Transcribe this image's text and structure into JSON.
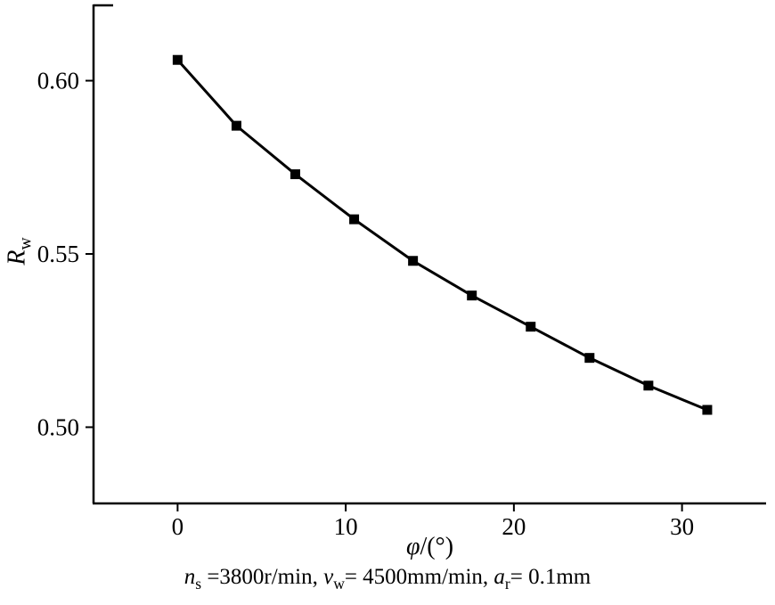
{
  "chart_data": {
    "type": "line",
    "title": "",
    "xlabel": "φ/(°)",
    "ylabel": "R_w",
    "x": [
      0,
      3.5,
      7,
      10.5,
      14,
      17.5,
      21,
      24.5,
      28,
      31.5
    ],
    "y": [
      0.606,
      0.587,
      0.573,
      0.56,
      0.548,
      0.538,
      0.529,
      0.52,
      0.512,
      0.505
    ],
    "xlim": [
      -5,
      35
    ],
    "ylim": [
      0.478,
      0.622
    ],
    "xticks": [
      0,
      10,
      20,
      30
    ],
    "yticks": [
      0.5,
      0.55,
      0.6
    ],
    "grid": false,
    "legend": "none",
    "marker": "square",
    "line_color": "#000000",
    "marker_color": "#000000"
  },
  "labels": {
    "xlabel": {
      "var": "φ",
      "rest": "/(°)"
    },
    "ylabel": {
      "var": "R",
      "sub": "w"
    }
  },
  "caption": {
    "segments": [
      {
        "t": "n",
        "i": true
      },
      {
        "t": "s",
        "sub": true
      },
      {
        "t": " =3800r/min,  "
      },
      {
        "t": "v",
        "i": true
      },
      {
        "t": "w",
        "sub": true
      },
      {
        "t": "= 4500mm/min, "
      },
      {
        "t": "a",
        "i": true
      },
      {
        "t": "r",
        "sub": true
      },
      {
        "t": "= 0.1mm"
      }
    ]
  }
}
